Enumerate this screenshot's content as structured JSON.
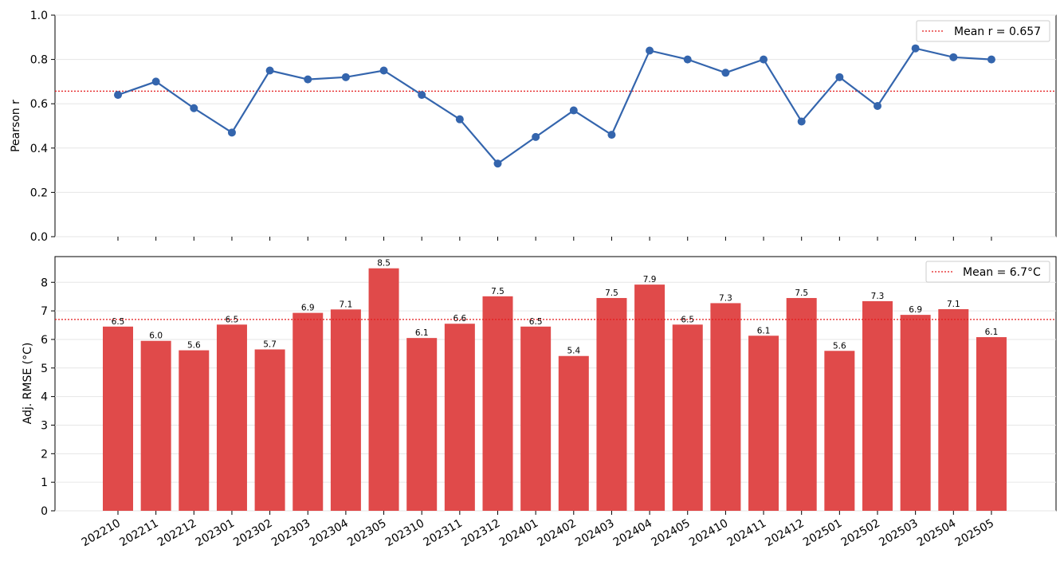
{
  "chart_data": [
    {
      "type": "line",
      "categories": [
        "202210",
        "202211",
        "202212",
        "202301",
        "202302",
        "202303",
        "202304",
        "202305",
        "202310",
        "202311",
        "202312",
        "202401",
        "202402",
        "202403",
        "202404",
        "202405",
        "202410",
        "202411",
        "202412",
        "202501",
        "202502",
        "202503",
        "202504",
        "202505"
      ],
      "series": [
        {
          "values": [
            0.64,
            0.7,
            0.58,
            0.47,
            0.75,
            0.71,
            0.72,
            0.75,
            0.64,
            0.53,
            0.33,
            0.45,
            0.57,
            0.46,
            0.84,
            0.8,
            0.74,
            0.8,
            0.52,
            0.72,
            0.59,
            0.85,
            0.81,
            0.8
          ],
          "color": "#3465ad"
        }
      ],
      "ylabel": "Pearson r",
      "xlabel": "",
      "ylim": [
        0,
        1.0
      ],
      "yticks": [
        "0.0",
        "0.2",
        "0.4",
        "0.6",
        "0.8",
        "1.0"
      ],
      "grid": true,
      "mean_line": {
        "value": 0.657,
        "label": "Mean r = 0.657",
        "color": "#e41a1c"
      },
      "legend_position": "top-right"
    },
    {
      "type": "bar",
      "categories": [
        "202210",
        "202211",
        "202212",
        "202301",
        "202302",
        "202303",
        "202304",
        "202305",
        "202310",
        "202311",
        "202312",
        "202401",
        "202402",
        "202403",
        "202404",
        "202405",
        "202410",
        "202411",
        "202412",
        "202501",
        "202502",
        "202503",
        "202504",
        "202505"
      ],
      "values": [
        6.45,
        5.95,
        5.62,
        6.52,
        5.65,
        6.93,
        7.05,
        8.49,
        6.05,
        6.55,
        7.51,
        6.45,
        5.42,
        7.45,
        7.92,
        6.52,
        7.27,
        6.13,
        7.45,
        5.6,
        7.34,
        6.86,
        7.06,
        6.08
      ],
      "labels": [
        "6.5",
        "6.0",
        "5.6",
        "6.5",
        "5.7",
        "6.9",
        "7.1",
        "8.5",
        "6.1",
        "6.6",
        "7.5",
        "6.5",
        "5.4",
        "7.5",
        "7.9",
        "6.5",
        "7.3",
        "6.1",
        "7.5",
        "5.6",
        "7.3",
        "6.9",
        "7.1",
        "6.1"
      ],
      "bar_color": "#e04a4a",
      "ylabel": "Adj. RMSE (°C)",
      "xlabel": "",
      "ylim": [
        0,
        8.9
      ],
      "yticks": [
        "0",
        "1",
        "2",
        "3",
        "4",
        "5",
        "6",
        "7",
        "8"
      ],
      "grid": true,
      "mean_line": {
        "value": 6.7,
        "label": "Mean = 6.7°C",
        "color": "#e41a1c"
      },
      "legend_position": "top-right"
    }
  ]
}
